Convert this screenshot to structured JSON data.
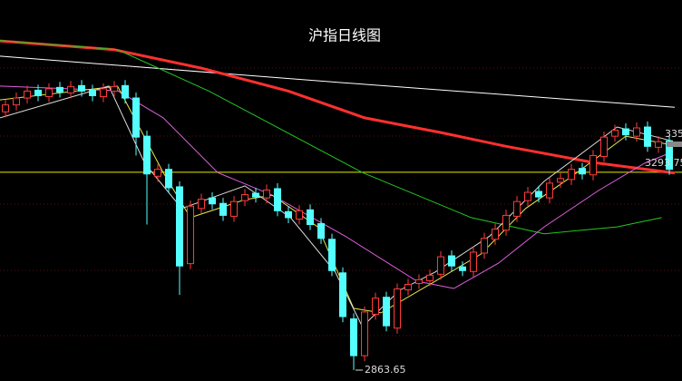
{
  "chart_data": {
    "type": "candlestick",
    "title": "沪指日线图",
    "ylim": [
      2840,
      3668
    ],
    "up_color": "#ff3b3b",
    "down_color": "#54ffff",
    "open": [
      3425,
      3440,
      3455,
      3472,
      3458,
      3478,
      3466,
      3482,
      3472,
      3458,
      3470,
      3482,
      3455,
      3372,
      3285,
      3300,
      3262,
      3095,
      3215,
      3238,
      3226,
      3198,
      3232,
      3248,
      3238,
      3258,
      3208,
      3192,
      3212,
      3182,
      3148,
      3075,
      2975,
      2895,
      2985,
      3022,
      2955,
      3038,
      3052,
      3058,
      3072,
      3112,
      3088,
      3078,
      3118,
      3148,
      3168,
      3198,
      3232,
      3252,
      3238,
      3272,
      3278,
      3302,
      3288,
      3328,
      3372,
      3388,
      3372,
      3392,
      3348,
      3362
    ],
    "high": [
      3452,
      3467,
      3482,
      3484,
      3487,
      3490,
      3492,
      3494,
      3484,
      3487,
      3492,
      3494,
      3467,
      3384,
      3312,
      3312,
      3274,
      3232,
      3247,
      3250,
      3238,
      3242,
      3257,
      3260,
      3267,
      3270,
      3220,
      3222,
      3224,
      3194,
      3160,
      3087,
      2987,
      3002,
      3032,
      3034,
      3052,
      3062,
      3072,
      3082,
      3122,
      3124,
      3100,
      3132,
      3162,
      3182,
      3212,
      3242,
      3262,
      3264,
      3282,
      3292,
      3312,
      3314,
      3342,
      3382,
      3397,
      3400,
      3402,
      3404,
      3372,
      3374
    ],
    "low": [
      3413,
      3428,
      3443,
      3448,
      3446,
      3456,
      3454,
      3458,
      3448,
      3446,
      3458,
      3443,
      3330,
      3180,
      3273,
      3248,
      3027,
      3083,
      3203,
      3213,
      3188,
      3186,
      3220,
      3228,
      3226,
      3198,
      3183,
      3180,
      3168,
      3138,
      3068,
      2968,
      2863.65,
      2883,
      2973,
      2948,
      2943,
      3026,
      3040,
      3046,
      3060,
      3078,
      3068,
      3066,
      3106,
      3136,
      3156,
      3186,
      3220,
      3228,
      3226,
      3260,
      3266,
      3278,
      3276,
      3316,
      3360,
      3363,
      3360,
      3338,
      3336,
      3288
    ],
    "close": [
      3440,
      3455,
      3470,
      3460,
      3475,
      3468,
      3480,
      3470,
      3460,
      3475,
      3480,
      3455,
      3370,
      3290,
      3300,
      3260,
      3090,
      3220,
      3235,
      3225,
      3200,
      3230,
      3245,
      3240,
      3255,
      3210,
      3195,
      3210,
      3180,
      3150,
      3080,
      2980,
      2895,
      2990,
      3020,
      2960,
      3040,
      3050,
      3060,
      3070,
      3110,
      3090,
      3080,
      3120,
      3150,
      3170,
      3200,
      3230,
      3250,
      3240,
      3270,
      3280,
      3300,
      3290,
      3330,
      3370,
      3385,
      3375,
      3390,
      3350,
      3360,
      3300
    ],
    "lines": [
      {
        "color": "#ffffff",
        "width": 1,
        "x": [
          -0.5,
          30,
          61.5
        ],
        "values": [
          3546,
          3490,
          3435
        ]
      },
      {
        "color": "#ff3030",
        "width": 3,
        "x": [
          -0.5,
          10,
          18,
          26,
          33,
          40,
          46,
          54,
          61.5
        ],
        "values": [
          3579,
          3560,
          3520,
          3470,
          3412,
          3380,
          3350,
          3315,
          3292
        ]
      },
      {
        "color": "#22c922",
        "width": 1,
        "x": [
          -0.5,
          10.3,
          18.7,
          32.8,
          42.8,
          49.5,
          56.2,
          60.3
        ],
        "values": [
          3580,
          3560,
          3470,
          3293,
          3195,
          3160,
          3175,
          3195
        ]
      },
      {
        "color": "#e060e0",
        "width": 1,
        "x": [
          -0.5,
          10.3,
          14.5,
          19.5,
          24.5,
          31.2,
          37.8,
          41.2,
          45.3,
          49.5,
          54.5,
          58.7,
          61.2
        ],
        "values": [
          3481,
          3471,
          3412,
          3293,
          3244,
          3155,
          3057,
          3041,
          3096,
          3175,
          3254,
          3313,
          3337
        ]
      },
      {
        "color": "#e8e84a",
        "width": 1,
        "x": [
          -0.5,
          10.3,
          14.5,
          17,
          22,
          24.5,
          28.7,
          32,
          34.5,
          39.5,
          43.7,
          47.8,
          52,
          57,
          61.2
        ],
        "values": [
          3451,
          3481,
          3293,
          3195,
          3234,
          3244,
          3175,
          2998,
          2988,
          3057,
          3116,
          3215,
          3284,
          3372,
          3353
        ]
      },
      {
        "color": "#dddddd",
        "width": 1,
        "x": [
          -0.5,
          9.5,
          12.8,
          16.2,
          22,
          26.2,
          30.3,
          32.8,
          36.2,
          39.5,
          44.5,
          49.5,
          56.2,
          61.2
        ],
        "values": [
          3412,
          3481,
          3313,
          3215,
          3264,
          3195,
          3077,
          2958,
          3037,
          3077,
          3155,
          3274,
          3392,
          3362
        ]
      }
    ],
    "hline": 3293.75,
    "hline_color": "#e8e800",
    "hline_label": "3293.75",
    "edge_label": "335"
  }
}
